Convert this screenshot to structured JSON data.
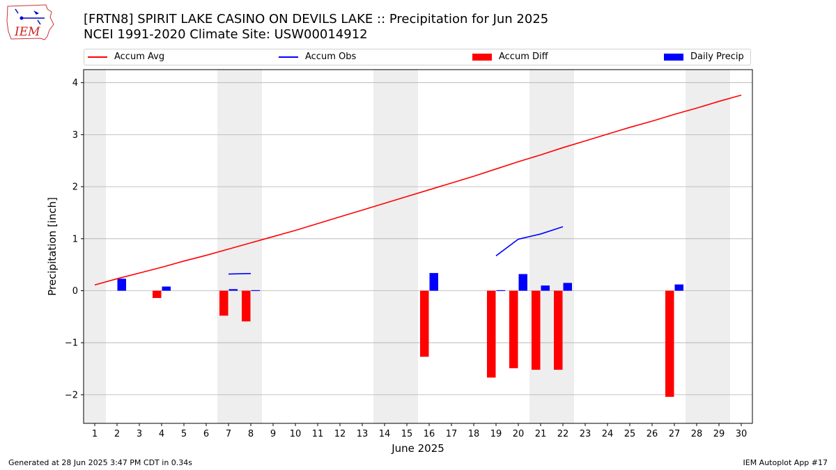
{
  "header": {
    "title_line1": "[FRTN8] SPIRIT LAKE CASINO ON DEVILS LAKE :: Precipitation for Jun 2025",
    "title_line2": "NCEI 1991-2020 Climate Site: USW00014912",
    "logo_text": "IEM"
  },
  "legend": [
    {
      "label": "Accum Avg",
      "kind": "line",
      "color": "#ff0000"
    },
    {
      "label": "Accum Obs",
      "kind": "line",
      "color": "#0000ff"
    },
    {
      "label": "Accum Diff",
      "kind": "patch",
      "color": "#ff0000"
    },
    {
      "label": "Daily Precip",
      "kind": "patch",
      "color": "#0000ff"
    }
  ],
  "footer": {
    "left": "Generated at 28 Jun 2025 3:47 PM CDT in 0.34s",
    "right": "IEM Autoplot App #17"
  },
  "chart_data": {
    "type": "bar",
    "xlabel": "June 2025",
    "ylabel": "Precipitation [inch]",
    "x": [
      1,
      2,
      3,
      4,
      5,
      6,
      7,
      8,
      9,
      10,
      11,
      12,
      13,
      14,
      15,
      16,
      17,
      18,
      19,
      20,
      21,
      22,
      23,
      24,
      25,
      26,
      27,
      28,
      29,
      30
    ],
    "xlim": [
      0.5,
      30.5
    ],
    "ylim": [
      -2.55,
      4.25
    ],
    "yticks": [
      -2,
      -1,
      0,
      1,
      2,
      3,
      4
    ],
    "grid": "horizontal",
    "weekend_shading": [
      1,
      7,
      8,
      14,
      15,
      21,
      22,
      28,
      29
    ],
    "series": [
      {
        "name": "Accum Avg",
        "type": "line",
        "color": "#ff0000",
        "values": [
          0.11,
          0.23,
          0.34,
          0.45,
          0.57,
          0.68,
          0.8,
          0.92,
          1.04,
          1.16,
          1.29,
          1.42,
          1.55,
          1.68,
          1.81,
          1.94,
          2.07,
          2.2,
          2.34,
          2.48,
          2.61,
          2.75,
          2.88,
          3.01,
          3.14,
          3.26,
          3.39,
          3.51,
          3.64,
          3.76
        ]
      },
      {
        "name": "Accum Obs",
        "type": "line",
        "color": "#0000ff",
        "values": [
          null,
          null,
          null,
          null,
          null,
          null,
          0.32,
          0.33,
          null,
          null,
          null,
          null,
          null,
          null,
          null,
          null,
          null,
          null,
          0.67,
          0.99,
          1.09,
          1.23,
          null,
          null,
          null,
          null,
          null,
          null,
          null,
          null
        ]
      },
      {
        "name": "Accum Diff",
        "type": "bar",
        "color": "#ff0000",
        "values": [
          null,
          null,
          null,
          -0.14,
          null,
          null,
          -0.48,
          -0.59,
          null,
          null,
          null,
          null,
          null,
          null,
          null,
          -1.27,
          null,
          null,
          -1.67,
          -1.49,
          -1.52,
          -1.52,
          null,
          null,
          null,
          null,
          -2.04,
          null,
          null,
          null
        ]
      },
      {
        "name": "Daily Precip",
        "type": "bar",
        "color": "#0000ff",
        "values": [
          null,
          0.23,
          null,
          0.08,
          null,
          null,
          0.03,
          0.01,
          null,
          null,
          null,
          null,
          null,
          null,
          null,
          0.34,
          null,
          null,
          0.01,
          0.32,
          0.1,
          0.15,
          null,
          null,
          null,
          null,
          0.12,
          null,
          null,
          null
        ]
      }
    ]
  }
}
